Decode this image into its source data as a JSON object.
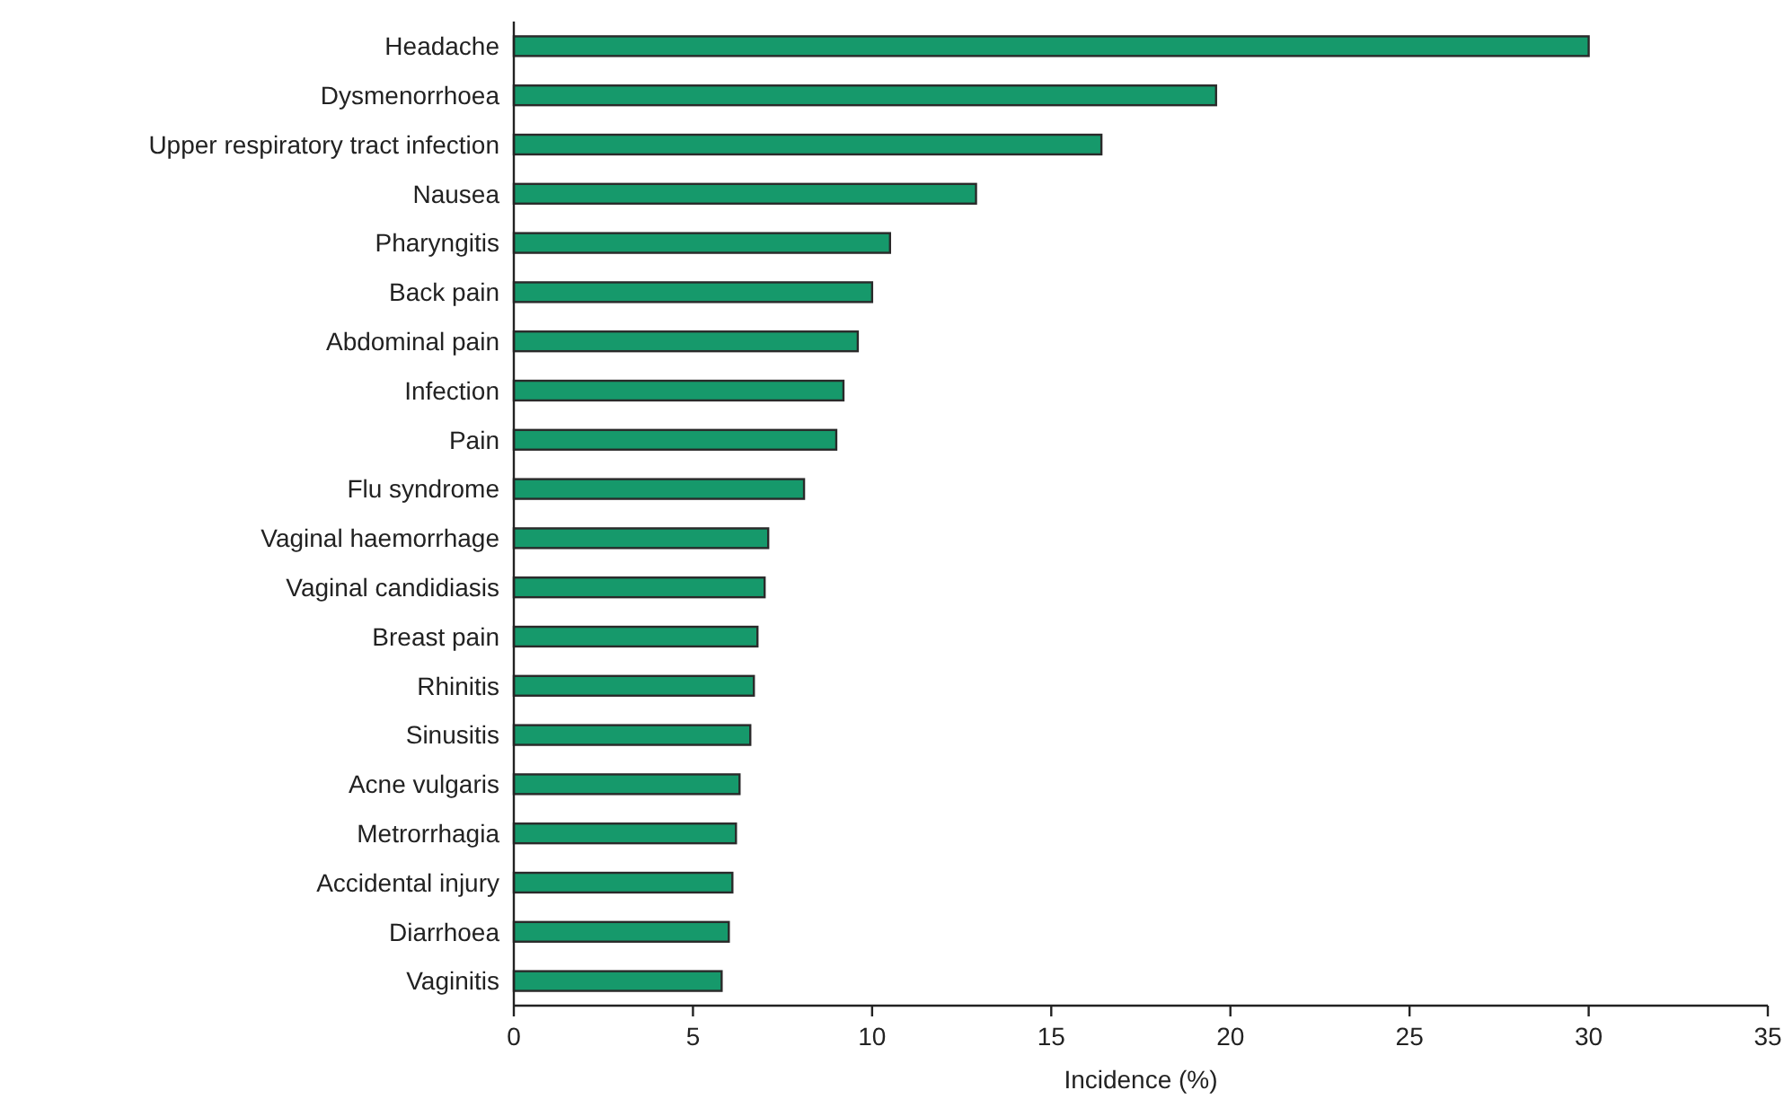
{
  "chart_data": {
    "type": "bar",
    "orientation": "horizontal",
    "xlabel": "Incidence (%)",
    "categories": [
      "Headache",
      "Dysmenorrhoea",
      "Upper respiratory tract infection",
      "Nausea",
      "Pharyngitis",
      "Back pain",
      "Abdominal pain",
      "Infection",
      "Pain",
      "Flu syndrome",
      "Vaginal haemorrhage",
      "Vaginal candidiasis",
      "Breast pain",
      "Rhinitis",
      "Sinusitis",
      "Acne vulgaris",
      "Metrorrhagia",
      "Accidental injury",
      "Diarrhoea",
      "Vaginitis"
    ],
    "values": [
      30.0,
      19.6,
      16.4,
      12.9,
      10.5,
      10.0,
      9.6,
      9.2,
      9.0,
      8.1,
      7.1,
      7.0,
      6.8,
      6.7,
      6.6,
      6.3,
      6.2,
      6.1,
      6.0,
      5.8
    ],
    "color": "#16996b",
    "xlim": [
      0,
      35
    ],
    "xticks": [
      0,
      5,
      10,
      15,
      20,
      25,
      30,
      35
    ],
    "grid": false
  }
}
